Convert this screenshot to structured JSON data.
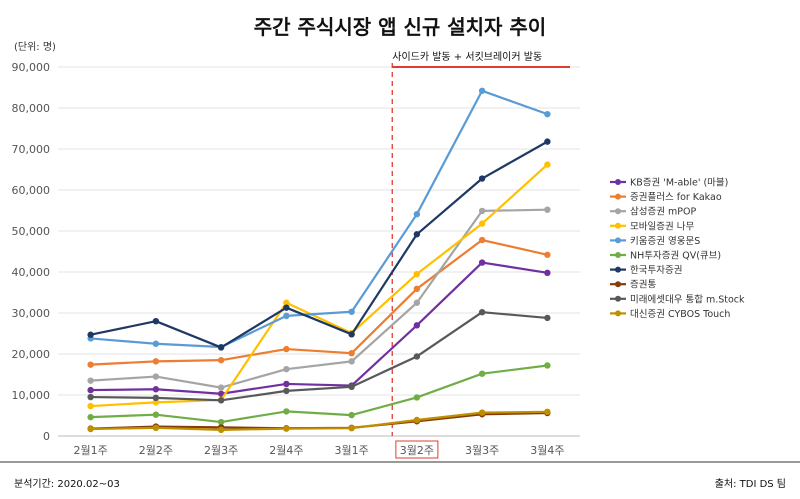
{
  "chart_data": {
    "type": "line",
    "title": "주간 주식시장 앱 신규 설치자 추이",
    "unit_label": "(단위: 명)",
    "categories": [
      "2월1주",
      "2월2주",
      "2월3주",
      "2월4주",
      "3월1주",
      "3월2주",
      "3월3주",
      "3월4주"
    ],
    "highlight_category": "3월2주",
    "ylim": [
      0,
      90000
    ],
    "yticks": [
      "0",
      "10,000",
      "20,000",
      "30,000",
      "40,000",
      "50,000",
      "60,000",
      "70,000",
      "80,000",
      "90,000"
    ],
    "ytick_values": [
      0,
      10000,
      20000,
      30000,
      40000,
      50000,
      60000,
      70000,
      80000,
      90000
    ],
    "grid": true,
    "legend_position": "right",
    "annotation": "사이드카 발동 + 서킷브레이커 발동",
    "series": [
      {
        "name": "KB증권 'M-able' (마블)",
        "color": "#7030a0",
        "values": [
          11200,
          11400,
          10300,
          12700,
          12300,
          27000,
          42300,
          39800
        ]
      },
      {
        "name": "증권플러스 for Kakao",
        "color": "#ed7d31",
        "values": [
          17400,
          18200,
          18500,
          21200,
          20200,
          35900,
          47800,
          44200
        ]
      },
      {
        "name": "삼성증권 mPOP",
        "color": "#a5a5a5",
        "values": [
          13500,
          14500,
          11800,
          16300,
          18200,
          32500,
          54900,
          55200
        ]
      },
      {
        "name": "모바일증권 나무",
        "color": "#ffc000",
        "values": [
          7300,
          8200,
          8800,
          32500,
          25100,
          39500,
          51800,
          66200
        ]
      },
      {
        "name": "키움증권 영웅문S",
        "color": "#5b9bd5",
        "values": [
          23800,
          22500,
          21700,
          29300,
          30300,
          54100,
          84200,
          78500
        ]
      },
      {
        "name": "NH투자증권 QV(큐브)",
        "color": "#70ad47",
        "values": [
          4600,
          5200,
          3400,
          6000,
          5100,
          9400,
          15200,
          17200
        ]
      },
      {
        "name": "한국투자증권",
        "color": "#1f3864",
        "values": [
          24700,
          28000,
          21600,
          31300,
          24800,
          49200,
          62800,
          71800
        ]
      },
      {
        "name": "증권통",
        "color": "#843c0c",
        "values": [
          1800,
          2300,
          2100,
          1900,
          2000,
          3600,
          5300,
          5600
        ]
      },
      {
        "name": "미래에셋대우 통합 m.Stock",
        "color": "#595959",
        "values": [
          9500,
          9300,
          8700,
          11000,
          12000,
          19400,
          30200,
          28800
        ]
      },
      {
        "name": "대신증권 CYBOS Touch",
        "color": "#bf8f00",
        "values": [
          1700,
          2000,
          1500,
          1800,
          1900,
          3900,
          5700,
          5900
        ]
      }
    ]
  },
  "footer": {
    "period": "분석기간: 2020.02~03",
    "source": "출처: TDI DS 팀"
  }
}
